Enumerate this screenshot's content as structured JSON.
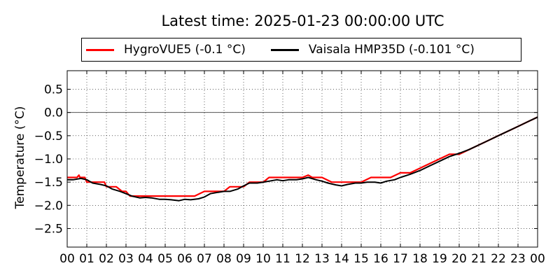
{
  "chart_data": {
    "type": "line",
    "title": "Latest time: 2025-01-23 00:00:00 UTC",
    "ylabel": "Temperature (°C)",
    "xlabel": "",
    "xlim": [
      0,
      24
    ],
    "ylim": [
      -2.9,
      0.9
    ],
    "x_ticks": [
      0,
      1,
      2,
      3,
      4,
      5,
      6,
      7,
      8,
      9,
      10,
      11,
      12,
      13,
      14,
      15,
      16,
      17,
      18,
      19,
      20,
      21,
      22,
      23,
      24
    ],
    "x_tick_labels": [
      "00",
      "01",
      "02",
      "03",
      "04",
      "05",
      "06",
      "07",
      "08",
      "09",
      "10",
      "11",
      "12",
      "13",
      "14",
      "15",
      "16",
      "17",
      "18",
      "19",
      "20",
      "21",
      "22",
      "23",
      "00"
    ],
    "y_ticks": [
      0.5,
      0.0,
      -0.5,
      -1.0,
      -1.5,
      -2.0,
      -2.5
    ],
    "y_tick_labels": [
      "0.5",
      "0.0",
      "−0.5",
      "−1.0",
      "−1.5",
      "−2.0",
      "−2.5"
    ],
    "grid": true,
    "zero_line": true,
    "legend_position": "top",
    "series": [
      {
        "name": "HygroVUE5 (-0.1 °C)",
        "color": "#ff0000",
        "x": [
          0,
          0.5,
          0.6,
          0.65,
          0.9,
          1.0,
          1.1,
          1.9,
          2.0,
          2.3,
          2.5,
          2.8,
          3.0,
          3.2,
          3.4,
          3.9,
          4.0,
          4.5,
          5.0,
          5.5,
          6.0,
          6.5,
          7.0,
          7.3,
          7.7,
          8.0,
          8.3,
          8.5,
          9.0,
          9.3,
          9.7,
          10.0,
          10.3,
          10.5,
          11.0,
          11.5,
          12.0,
          12.3,
          12.5,
          13.0,
          13.5,
          14.0,
          14.5,
          15.0,
          15.5,
          16.0,
          16.5,
          17.0,
          17.5,
          18.0,
          18.5,
          19.0,
          19.5,
          20.0,
          20.5,
          21.0,
          21.5,
          22.0,
          22.5,
          23.0,
          23.5,
          24.0
        ],
        "y": [
          -1.4,
          -1.4,
          -1.35,
          -1.4,
          -1.4,
          -1.5,
          -1.5,
          -1.5,
          -1.6,
          -1.6,
          -1.6,
          -1.7,
          -1.7,
          -1.8,
          -1.8,
          -1.8,
          -1.8,
          -1.8,
          -1.8,
          -1.8,
          -1.8,
          -1.8,
          -1.7,
          -1.7,
          -1.7,
          -1.7,
          -1.6,
          -1.6,
          -1.6,
          -1.5,
          -1.5,
          -1.5,
          -1.4,
          -1.4,
          -1.4,
          -1.4,
          -1.4,
          -1.35,
          -1.4,
          -1.4,
          -1.5,
          -1.5,
          -1.5,
          -1.5,
          -1.4,
          -1.4,
          -1.4,
          -1.3,
          -1.3,
          -1.2,
          -1.1,
          -1.0,
          -0.9,
          -0.9,
          -0.8,
          -0.7,
          -0.6,
          -0.5,
          -0.4,
          -0.3,
          -0.2,
          -0.1
        ]
      },
      {
        "name": "Vaisala HMP35D (-0.101 °C)",
        "color": "#000000",
        "x": [
          0,
          0.3,
          0.7,
          1.0,
          1.3,
          1.7,
          2.0,
          2.3,
          2.7,
          3.0,
          3.3,
          3.7,
          4.0,
          4.3,
          4.7,
          5.0,
          5.3,
          5.7,
          6.0,
          6.3,
          6.7,
          7.0,
          7.3,
          7.7,
          8.0,
          8.3,
          8.7,
          9.0,
          9.3,
          9.7,
          10.0,
          10.3,
          10.7,
          11.0,
          11.3,
          11.7,
          12.0,
          12.3,
          12.7,
          13.0,
          13.3,
          13.7,
          14.0,
          14.3,
          14.7,
          15.0,
          15.3,
          15.7,
          16.0,
          16.3,
          16.7,
          17.0,
          17.5,
          18.0,
          18.5,
          19.0,
          19.5,
          20.0,
          20.5,
          21.0,
          21.5,
          22.0,
          22.5,
          23.0,
          23.5,
          24.0
        ],
        "y": [
          -1.45,
          -1.45,
          -1.42,
          -1.45,
          -1.52,
          -1.55,
          -1.58,
          -1.65,
          -1.7,
          -1.75,
          -1.8,
          -1.84,
          -1.83,
          -1.84,
          -1.87,
          -1.87,
          -1.88,
          -1.9,
          -1.87,
          -1.88,
          -1.86,
          -1.82,
          -1.75,
          -1.72,
          -1.7,
          -1.7,
          -1.65,
          -1.58,
          -1.52,
          -1.52,
          -1.5,
          -1.48,
          -1.45,
          -1.47,
          -1.45,
          -1.45,
          -1.43,
          -1.4,
          -1.45,
          -1.48,
          -1.52,
          -1.56,
          -1.58,
          -1.55,
          -1.52,
          -1.52,
          -1.5,
          -1.5,
          -1.52,
          -1.48,
          -1.45,
          -1.4,
          -1.33,
          -1.25,
          -1.15,
          -1.05,
          -0.95,
          -0.88,
          -0.8,
          -0.7,
          -0.6,
          -0.5,
          -0.4,
          -0.3,
          -0.2,
          -0.1
        ]
      }
    ]
  }
}
